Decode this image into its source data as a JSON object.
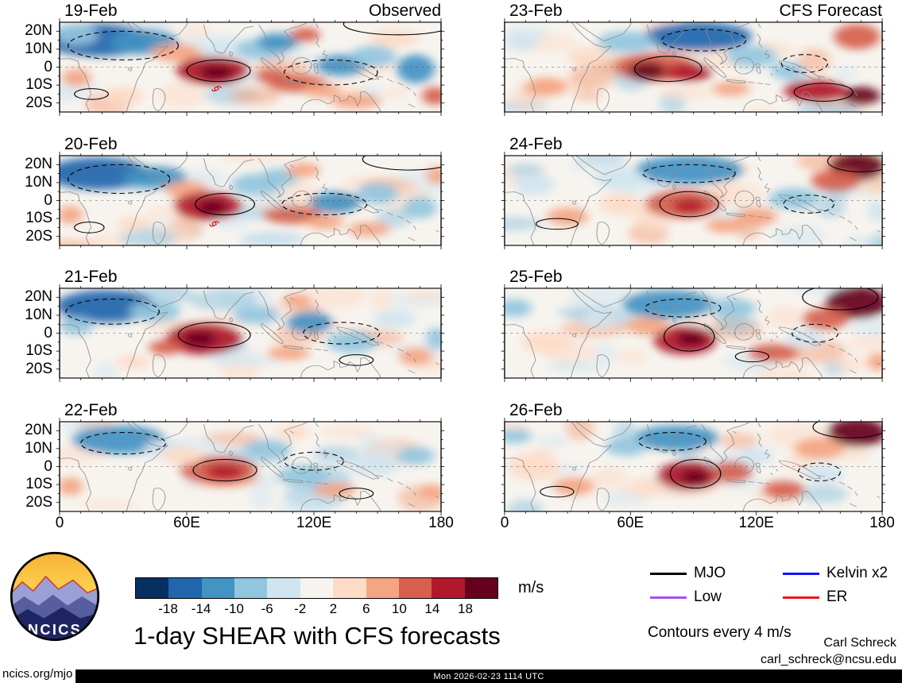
{
  "title": "1-day SHEAR with CFS forecasts",
  "header": {
    "observed": "Observed",
    "forecast": "CFS Forecast"
  },
  "axes": {
    "y_ticks": [
      "20N",
      "10N",
      "0",
      "10S",
      "20S"
    ],
    "x_ticks": [
      "0",
      "60E",
      "120E",
      "180"
    ]
  },
  "colorbar": {
    "values": [
      "-18",
      "-14",
      "-10",
      "-6",
      "-2",
      "2",
      "6",
      "10",
      "14",
      "18"
    ],
    "unit": "m/s",
    "colors": [
      "#053061",
      "#2166ac",
      "#4393c3",
      "#92c5de",
      "#d1e5f0",
      "#f7f4ef",
      "#fddbc7",
      "#f4a582",
      "#d6604d",
      "#b2182b",
      "#67001f"
    ]
  },
  "legend": {
    "items": [
      {
        "label": "MJO",
        "color": "#000000"
      },
      {
        "label": "Kelvin x2",
        "color": "#1414ff"
      },
      {
        "label": "Low",
        "color": "#b04cf0"
      },
      {
        "label": "ER",
        "color": "#f01414"
      }
    ],
    "note": "Contours every 4 m/s"
  },
  "credits": {
    "author": "Carl Schreck",
    "email": "carl_schreck@ncsu.edu",
    "site": "ncics.org/mjo",
    "timestamp": "Mon 2026-02-23 1114 UTC"
  },
  "logo": {
    "text": "NCICS"
  },
  "panel_feature_format": "[lon_deg_e, lat_deg_n, lon_radius, lat_radius, shading_level(-5 strong blue .. +5 strong red)]",
  "contour_format": "[lon_deg_e, lat_deg_n, lon_radius, lat_radius, dashed(0=solid,1=dashed)]",
  "panels": [
    {
      "date": "19-Feb",
      "group": "Observed",
      "features": [
        [
          18,
          15,
          26,
          9,
          -4
        ],
        [
          40,
          14,
          16,
          7,
          -3
        ],
        [
          8,
          18,
          10,
          6,
          -2
        ],
        [
          55,
          8,
          12,
          5,
          2
        ],
        [
          72,
          -2,
          17,
          8,
          4
        ],
        [
          74,
          -3,
          8,
          4,
          5
        ],
        [
          95,
          10,
          12,
          6,
          -2
        ],
        [
          103,
          14,
          10,
          5,
          -3
        ],
        [
          100,
          -5,
          8,
          4,
          3
        ],
        [
          112,
          -9,
          14,
          5,
          3
        ],
        [
          124,
          -13,
          9,
          4,
          2
        ],
        [
          133,
          1,
          12,
          6,
          -3
        ],
        [
          148,
          6,
          11,
          6,
          -2
        ],
        [
          168,
          -1,
          9,
          8,
          -3
        ],
        [
          116,
          18,
          7,
          4,
          3
        ],
        [
          158,
          16,
          12,
          5,
          1
        ],
        [
          30,
          -16,
          10,
          5,
          1
        ],
        [
          140,
          -19,
          12,
          4,
          2
        ],
        [
          177,
          -16,
          6,
          5,
          3
        ],
        [
          8,
          -6,
          7,
          5,
          2
        ]
      ],
      "contours": [
        [
          75,
          -2,
          15,
          6,
          0
        ],
        [
          30,
          12,
          26,
          8,
          1
        ],
        [
          128,
          -3,
          22,
          7,
          1
        ],
        [
          15,
          -15,
          8,
          3,
          0
        ],
        [
          160,
          24,
          26,
          6,
          0
        ]
      ],
      "cyclones": [
        [
          74,
          -12
        ]
      ]
    },
    {
      "date": "20-Feb",
      "group": "Observed",
      "features": [
        [
          18,
          15,
          24,
          9,
          -4
        ],
        [
          45,
          13,
          15,
          6,
          -3
        ],
        [
          60,
          6,
          10,
          5,
          2
        ],
        [
          70,
          -3,
          16,
          8,
          4
        ],
        [
          72,
          -4,
          7,
          4,
          5
        ],
        [
          93,
          9,
          12,
          6,
          -2
        ],
        [
          104,
          13,
          9,
          5,
          -2
        ],
        [
          110,
          -8,
          14,
          5,
          3
        ],
        [
          125,
          -12,
          9,
          4,
          2
        ],
        [
          130,
          -1,
          12,
          6,
          -3
        ],
        [
          150,
          4,
          10,
          6,
          -2
        ],
        [
          170,
          -4,
          8,
          6,
          -2
        ],
        [
          115,
          17,
          8,
          4,
          2
        ],
        [
          35,
          -13,
          8,
          4,
          1
        ],
        [
          146,
          -16,
          10,
          4,
          2
        ],
        [
          5,
          -8,
          6,
          5,
          2
        ],
        [
          178,
          14,
          5,
          5,
          2
        ]
      ],
      "contours": [
        [
          78,
          -2,
          14,
          6,
          0
        ],
        [
          28,
          12,
          24,
          8,
          1
        ],
        [
          125,
          -2,
          20,
          6,
          1
        ],
        [
          14,
          -15,
          7,
          3,
          0
        ],
        [
          165,
          23,
          22,
          6,
          0
        ]
      ],
      "cyclones": [
        [
          73,
          -13
        ]
      ]
    },
    {
      "date": "21-Feb",
      "group": "Observed",
      "features": [
        [
          22,
          15,
          24,
          9,
          -4
        ],
        [
          45,
          12,
          12,
          6,
          -2
        ],
        [
          68,
          -3,
          18,
          9,
          4
        ],
        [
          66,
          -3,
          8,
          4,
          5
        ],
        [
          50,
          -8,
          8,
          4,
          3
        ],
        [
          93,
          10,
          11,
          5,
          -2
        ],
        [
          118,
          6,
          11,
          6,
          -3
        ],
        [
          108,
          -11,
          10,
          4,
          2
        ],
        [
          138,
          -5,
          12,
          6,
          -2
        ],
        [
          158,
          8,
          10,
          5,
          -1
        ],
        [
          168,
          -13,
          8,
          5,
          2
        ],
        [
          8,
          4,
          8,
          5,
          -2
        ],
        [
          112,
          18,
          7,
          4,
          2
        ],
        [
          178,
          -3,
          5,
          6,
          -2
        ],
        [
          35,
          -16,
          8,
          4,
          1
        ]
      ],
      "contours": [
        [
          73,
          -1,
          17,
          7,
          0
        ],
        [
          25,
          12,
          22,
          7,
          1
        ],
        [
          133,
          0,
          18,
          6,
          1
        ],
        [
          140,
          -15,
          8,
          3,
          0
        ]
      ],
      "cyclones": []
    },
    {
      "date": "22-Feb",
      "group": "Observed",
      "features": [
        [
          28,
          15,
          22,
          8,
          -3
        ],
        [
          50,
          10,
          10,
          5,
          -1
        ],
        [
          75,
          -2,
          18,
          8,
          3
        ],
        [
          78,
          -3,
          9,
          4,
          4
        ],
        [
          58,
          6,
          10,
          5,
          1
        ],
        [
          98,
          10,
          11,
          5,
          -2
        ],
        [
          115,
          -5,
          12,
          6,
          -2
        ],
        [
          130,
          -13,
          10,
          4,
          2
        ],
        [
          148,
          1,
          12,
          6,
          -1
        ],
        [
          168,
          6,
          9,
          5,
          -2
        ],
        [
          5,
          -11,
          6,
          5,
          2
        ],
        [
          176,
          -14,
          6,
          4,
          2
        ],
        [
          110,
          19,
          8,
          4,
          1
        ]
      ],
      "contours": [
        [
          78,
          -2,
          15,
          6,
          0
        ],
        [
          30,
          13,
          20,
          6,
          1
        ],
        [
          120,
          3,
          14,
          5,
          1
        ],
        [
          140,
          -15,
          8,
          3,
          0
        ]
      ],
      "cyclones": []
    },
    {
      "date": "23-Feb",
      "group": "CFS Forecast",
      "features": [
        [
          92,
          17,
          26,
          8,
          -4
        ],
        [
          58,
          14,
          14,
          6,
          -2
        ],
        [
          72,
          0,
          20,
          8,
          3
        ],
        [
          68,
          -2,
          9,
          5,
          5
        ],
        [
          88,
          -3,
          11,
          5,
          4
        ],
        [
          118,
          6,
          12,
          6,
          -2
        ],
        [
          135,
          -2,
          8,
          5,
          -2
        ],
        [
          148,
          -13,
          15,
          6,
          4
        ],
        [
          170,
          -16,
          9,
          5,
          5
        ],
        [
          168,
          17,
          11,
          7,
          3
        ],
        [
          20,
          -11,
          10,
          5,
          2
        ],
        [
          40,
          6,
          10,
          5,
          1
        ],
        [
          8,
          14,
          8,
          5,
          -1
        ],
        [
          108,
          -12,
          9,
          4,
          2
        ]
      ],
      "contours": [
        [
          78,
          -1,
          16,
          7,
          0
        ],
        [
          95,
          15,
          20,
          6,
          1
        ],
        [
          152,
          -14,
          14,
          5,
          0
        ],
        [
          143,
          2,
          11,
          5,
          1
        ]
      ],
      "cyclones": []
    },
    {
      "date": "24-Feb",
      "group": "CFS Forecast",
      "features": [
        [
          88,
          17,
          26,
          8,
          -3
        ],
        [
          55,
          12,
          12,
          6,
          -1
        ],
        [
          85,
          -2,
          18,
          8,
          3
        ],
        [
          88,
          -3,
          8,
          4,
          4
        ],
        [
          168,
          19,
          13,
          8,
          5
        ],
        [
          158,
          11,
          12,
          6,
          3
        ],
        [
          138,
          1,
          12,
          6,
          -2
        ],
        [
          120,
          -9,
          10,
          5,
          2
        ],
        [
          30,
          -9,
          10,
          5,
          2
        ],
        [
          14,
          9,
          10,
          6,
          -1
        ],
        [
          55,
          -2,
          10,
          6,
          1
        ],
        [
          105,
          -14,
          9,
          4,
          2
        ],
        [
          178,
          -6,
          5,
          6,
          -1
        ]
      ],
      "contours": [
        [
          88,
          -2,
          14,
          7,
          0
        ],
        [
          88,
          15,
          22,
          5,
          1
        ],
        [
          25,
          -13,
          10,
          3,
          0
        ],
        [
          145,
          -2,
          12,
          5,
          1
        ],
        [
          170,
          22,
          16,
          6,
          0
        ]
      ],
      "cyclones": []
    },
    {
      "date": "25-Feb",
      "group": "CFS Forecast",
      "features": [
        [
          78,
          16,
          22,
          8,
          -3
        ],
        [
          108,
          14,
          12,
          5,
          -2
        ],
        [
          86,
          -4,
          15,
          8,
          4
        ],
        [
          89,
          -3,
          7,
          4,
          5
        ],
        [
          68,
          4,
          10,
          5,
          2
        ],
        [
          168,
          17,
          15,
          9,
          5
        ],
        [
          153,
          8,
          11,
          6,
          3
        ],
        [
          128,
          -11,
          12,
          5,
          3
        ],
        [
          143,
          -3,
          9,
          5,
          -1
        ],
        [
          20,
          -5,
          12,
          6,
          1
        ],
        [
          45,
          8,
          8,
          5,
          -1
        ],
        [
          5,
          14,
          8,
          5,
          -2
        ],
        [
          178,
          -16,
          5,
          5,
          2
        ]
      ],
      "contours": [
        [
          88,
          -2,
          12,
          8,
          0
        ],
        [
          85,
          14,
          18,
          5,
          1
        ],
        [
          160,
          20,
          18,
          7,
          0
        ],
        [
          148,
          0,
          11,
          5,
          1
        ],
        [
          118,
          -13,
          8,
          3,
          0
        ]
      ],
      "cyclones": []
    },
    {
      "date": "26-Feb",
      "group": "CFS Forecast",
      "features": [
        [
          82,
          16,
          20,
          7,
          -3
        ],
        [
          58,
          11,
          10,
          5,
          -2
        ],
        [
          88,
          -5,
          15,
          8,
          4
        ],
        [
          91,
          -6,
          7,
          4,
          5
        ],
        [
          108,
          -3,
          10,
          6,
          3
        ],
        [
          168,
          19,
          14,
          8,
          5
        ],
        [
          150,
          10,
          12,
          6,
          2
        ],
        [
          133,
          -13,
          10,
          5,
          3
        ],
        [
          152,
          -4,
          10,
          5,
          -1
        ],
        [
          14,
          0,
          12,
          8,
          1
        ],
        [
          33,
          -11,
          10,
          5,
          2
        ],
        [
          5,
          17,
          8,
          4,
          -2
        ],
        [
          120,
          6,
          8,
          5,
          -1
        ]
      ],
      "contours": [
        [
          91,
          -4,
          12,
          8,
          0
        ],
        [
          80,
          14,
          16,
          5,
          1
        ],
        [
          165,
          22,
          18,
          6,
          0
        ],
        [
          150,
          -3,
          10,
          5,
          1
        ],
        [
          25,
          -14,
          8,
          3,
          0
        ]
      ],
      "cyclones": []
    }
  ],
  "chart_data": {
    "type": "heatmap",
    "title": "1-day SHEAR with CFS forecasts",
    "unit": "m/s",
    "columns": [
      "Observed",
      "CFS Forecast"
    ],
    "panel_dates_observed": [
      "19-Feb",
      "20-Feb",
      "21-Feb",
      "22-Feb"
    ],
    "panel_dates_forecast": [
      "23-Feb",
      "24-Feb",
      "25-Feb",
      "26-Feb"
    ],
    "colorbar_levels": [
      -18,
      -14,
      -10,
      -6,
      -2,
      2,
      6,
      10,
      14,
      18
    ],
    "contour_interval": "4 m/s",
    "lon_range_deg_e": [
      0,
      180
    ],
    "lon_ticks": [
      "0",
      "60E",
      "120E",
      "180"
    ],
    "lat_ticks": [
      "20N",
      "10N",
      "0",
      "10S",
      "20S"
    ],
    "legend_contours": [
      "MJO",
      "Kelvin x2",
      "Low",
      "ER"
    ],
    "legend_position": "bottom-right",
    "grid": false
  }
}
